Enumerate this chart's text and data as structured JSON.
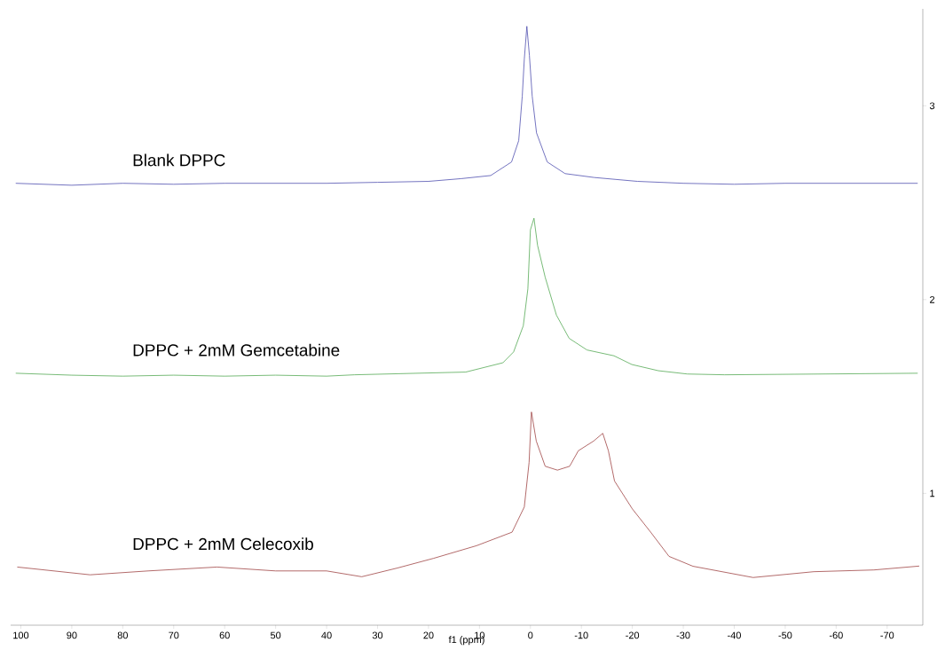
{
  "chart_data": {
    "type": "line",
    "xlabel": "f1 (ppm)",
    "legend": false,
    "marker": "none",
    "line_style": "solid",
    "xlim": [
      102,
      -77
    ],
    "xticks": [
      100,
      90,
      80,
      70,
      60,
      50,
      40,
      30,
      20,
      10,
      0,
      -10,
      -20,
      -30,
      -40,
      -50,
      -60,
      -70
    ],
    "ylim": [
      0.32,
      3.5
    ],
    "yticks": [
      1,
      2,
      3
    ],
    "series": [
      {
        "name": "Blank DPPC",
        "color": "#5050b0",
        "x": [
          101,
          90,
          80,
          70,
          60,
          50,
          40,
          30,
          20,
          13.6,
          7.8,
          3.7,
          2.3,
          1.6,
          1.2,
          0.7,
          0.2,
          -0.35,
          -1.2,
          -3.3,
          -6.8,
          -12.5,
          -21,
          -30,
          -40,
          -50,
          -60,
          -70,
          -76
        ],
        "values": [
          2.6,
          2.59,
          2.6,
          2.595,
          2.6,
          2.6,
          2.6,
          2.605,
          2.61,
          2.624,
          2.64,
          2.71,
          2.82,
          3.05,
          3.24,
          3.41,
          3.26,
          3.05,
          2.86,
          2.71,
          2.65,
          2.63,
          2.61,
          2.6,
          2.595,
          2.6,
          2.6,
          2.6,
          2.6
        ]
      },
      {
        "name": "DPPC + 2mM Gemcetabine",
        "color": "#55aa55",
        "x": [
          101,
          90,
          80,
          70,
          60,
          50,
          40,
          34.5,
          12.7,
          5.4,
          3.3,
          1.4,
          0.5,
          0,
          -0.7,
          -1.4,
          -2.9,
          -5.1,
          -7.6,
          -11.1,
          -16.4,
          -19.9,
          -25.1,
          -30.8,
          -38.1,
          -76
        ],
        "values": [
          1.62,
          1.61,
          1.605,
          1.61,
          1.605,
          1.61,
          1.605,
          1.612,
          1.626,
          1.674,
          1.73,
          1.865,
          2.055,
          2.36,
          2.42,
          2.28,
          2.115,
          1.92,
          1.8,
          1.74,
          1.71,
          1.665,
          1.633,
          1.616,
          1.612,
          1.62
        ]
      },
      {
        "name": "DPPC + 2mM Celecoxib",
        "color": "#a04545",
        "x": [
          100.7,
          86.4,
          75,
          61.5,
          50,
          40,
          33.1,
          26.1,
          19,
          10.6,
          3.6,
          1.2,
          0.26,
          -0.2,
          -1.15,
          -2.9,
          -5.3,
          -7.7,
          -9.4,
          -12.4,
          -14.2,
          -15.3,
          -16.5,
          -20,
          -23.6,
          -27.2,
          -31.9,
          -43.7,
          -55.6,
          -67.4,
          -76.3
        ],
        "values": [
          0.62,
          0.58,
          0.6,
          0.62,
          0.6,
          0.6,
          0.57,
          0.615,
          0.665,
          0.73,
          0.8,
          0.93,
          1.16,
          1.42,
          1.27,
          1.14,
          1.12,
          1.14,
          1.22,
          1.27,
          1.31,
          1.22,
          1.064,
          0.92,
          0.8,
          0.675,
          0.624,
          0.566,
          0.596,
          0.605,
          0.625
        ]
      }
    ]
  }
}
